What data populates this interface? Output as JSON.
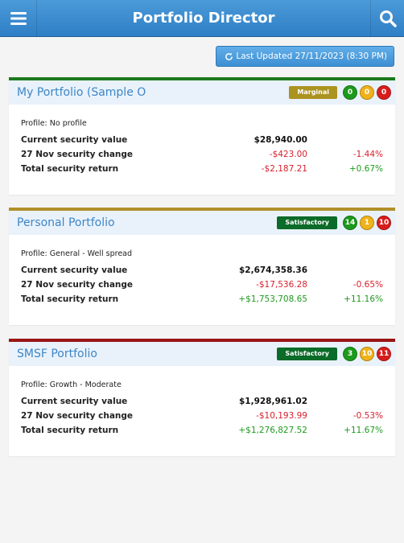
{
  "header": {
    "title": "Portfolio Director",
    "menu_icon": "hamburger-menu-icon",
    "search_icon": "search-icon"
  },
  "refresh": {
    "label": "Last Updated 27/11/2023 (8:30 PM)",
    "icon": "refresh-icon"
  },
  "colors": {
    "header_blue": "#3a8bd0",
    "green": "#1c9a1c",
    "amber": "#f0b21a",
    "red": "#d81c1c",
    "marginal": "#ab9320",
    "satisfactory": "#0b6b28"
  },
  "labels": {
    "current_value": "Current security value",
    "change": "27 Nov security change",
    "total_return": "Total security return"
  },
  "portfolios": [
    {
      "name": "My Portfolio (Sample O...",
      "status": "Marginal",
      "top_color": "#1d7a1d",
      "status_color": "#ab9320",
      "green_count": "0",
      "amber_count": "0",
      "red_count": "0",
      "profile": "Profile: No profile",
      "current_value": "$28,940.00",
      "change_value": "-$423.00",
      "change_pct": "-1.44%",
      "return_value": "-$2,187.21",
      "return_pct": "+0.67%"
    },
    {
      "name": "Personal Portfolio",
      "status": "Satisfactory",
      "top_color": "#b0902a",
      "status_color": "#0b6b28",
      "green_count": "14",
      "amber_count": "1",
      "red_count": "10",
      "profile": "Profile: General - Well spread",
      "current_value": "$2,674,358.36",
      "change_value": "-$17,536.28",
      "change_pct": "-0.65%",
      "return_value": "+$1,753,708.65",
      "return_pct": "+11.16%"
    },
    {
      "name": "SMSF Portfolio",
      "status": "Satisfactory",
      "top_color": "#9a1414",
      "status_color": "#0b6b28",
      "green_count": "3",
      "amber_count": "10",
      "red_count": "11",
      "profile": "Profile: Growth - Moderate",
      "current_value": "$1,928,961.02",
      "change_value": "-$10,193.99",
      "change_pct": "-0.53%",
      "return_value": "+$1,276,827.52",
      "return_pct": "+11.67%"
    }
  ]
}
